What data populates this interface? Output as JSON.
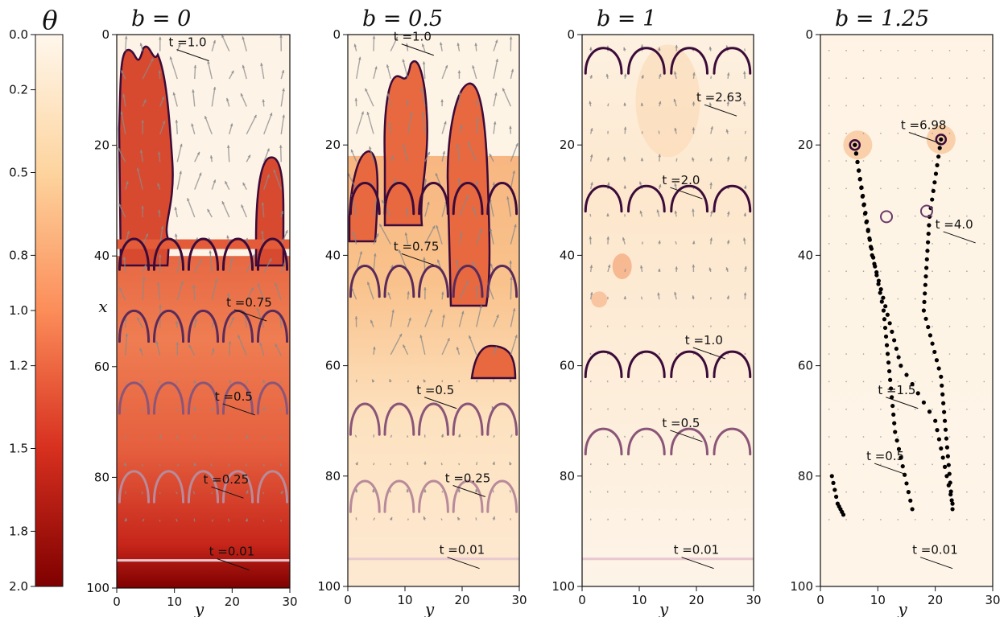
{
  "colorbar": {
    "label": "θ",
    "ticks": [
      "0.0",
      "0.2",
      "0.5",
      "0.8",
      "1.0",
      "1.2",
      "1.5",
      "1.8",
      "2.0"
    ],
    "tick_values": [
      0.0,
      0.2,
      0.5,
      0.8,
      1.0,
      1.2,
      1.5,
      1.8,
      2.0
    ],
    "range": [
      0.0,
      2.0
    ],
    "colors_light_to_dark": [
      "#fff7ec",
      "#fdd49e",
      "#fc8d59",
      "#d7301f",
      "#7f0000"
    ]
  },
  "chart_data": [
    {
      "type": "heatmap",
      "title": "b = 0",
      "xlabel": "y",
      "ylabel": "x",
      "xlim": [
        0,
        30
      ],
      "ylim": [
        100,
        0
      ],
      "x_ticks": [
        "0",
        "10",
        "20",
        "30"
      ],
      "y_ticks": [
        "0",
        "20",
        "40",
        "60",
        "80",
        "100"
      ],
      "annotations": [
        {
          "text": "t =1.0",
          "x": 9,
          "y": 3
        },
        {
          "text": "t =0.75",
          "x": 19,
          "y": 50
        },
        {
          "text": "t =0.5",
          "x": 17,
          "y": 67
        },
        {
          "text": "t =0.25",
          "x": 15,
          "y": 82
        },
        {
          "text": "t =0.01",
          "x": 16,
          "y": 95
        }
      ],
      "interface_depths": [
        {
          "t": 0.01,
          "x": 95
        },
        {
          "t": 0.25,
          "x": 82
        },
        {
          "t": 0.5,
          "x": 66
        },
        {
          "t": 0.75,
          "x": 53
        },
        {
          "t": 1.0,
          "x": 40
        }
      ]
    },
    {
      "type": "heatmap",
      "title": "b = 0.5",
      "xlabel": "y",
      "ylabel": "",
      "xlim": [
        0,
        30
      ],
      "ylim": [
        100,
        0
      ],
      "x_ticks": [
        "0",
        "10",
        "20",
        "30"
      ],
      "y_ticks": [
        "0",
        "20",
        "40",
        "60",
        "80",
        "100"
      ],
      "annotations": [
        {
          "text": "t =1.0",
          "x": 8,
          "y": 2
        },
        {
          "text": "t =0.75",
          "x": 8,
          "y": 40
        },
        {
          "text": "t =0.5",
          "x": 12,
          "y": 66
        },
        {
          "text": "t =0.25",
          "x": 17,
          "y": 82
        },
        {
          "text": "t =0.01",
          "x": 16,
          "y": 95
        }
      ],
      "interface_depths": [
        {
          "t": 0.01,
          "x": 95
        },
        {
          "t": 0.25,
          "x": 84
        },
        {
          "t": 0.5,
          "x": 70
        },
        {
          "t": 0.75,
          "x": 45
        },
        {
          "t": 1.0,
          "x": 30
        }
      ]
    },
    {
      "type": "heatmap",
      "title": "b = 1",
      "xlabel": "y",
      "ylabel": "",
      "xlim": [
        0,
        30
      ],
      "ylim": [
        100,
        0
      ],
      "x_ticks": [
        "0",
        "10",
        "20",
        "30"
      ],
      "y_ticks": [
        "0",
        "20",
        "40",
        "60",
        "80",
        "100"
      ],
      "annotations": [
        {
          "text": "t =2.63",
          "x": 20,
          "y": 13
        },
        {
          "text": "t =2.0",
          "x": 14,
          "y": 28
        },
        {
          "text": "t =1.0",
          "x": 18,
          "y": 57
        },
        {
          "text": "t =0.5",
          "x": 14,
          "y": 72
        },
        {
          "text": "t =0.01",
          "x": 16,
          "y": 95
        }
      ],
      "interface_depths": [
        {
          "t": 0.01,
          "x": 95
        },
        {
          "t": 0.5,
          "x": 74
        },
        {
          "t": 1.0,
          "x": 60
        },
        {
          "t": 2.0,
          "x": 30
        },
        {
          "t": 2.63,
          "x": 5
        }
      ]
    },
    {
      "type": "heatmap",
      "title": "b = 1.25",
      "xlabel": "y",
      "ylabel": "",
      "xlim": [
        0,
        30
      ],
      "ylim": [
        100,
        0
      ],
      "x_ticks": [
        "0",
        "10",
        "20",
        "30"
      ],
      "y_ticks": [
        "0",
        "20",
        "40",
        "60",
        "80",
        "100"
      ],
      "annotations": [
        {
          "text": "t =6.98",
          "x": 14,
          "y": 18
        },
        {
          "text": "t =4.0",
          "x": 20,
          "y": 36
        },
        {
          "text": "t =1.5",
          "x": 10,
          "y": 66
        },
        {
          "text": "t =0.5",
          "x": 8,
          "y": 78
        },
        {
          "text": "t =0.01",
          "x": 16,
          "y": 95
        }
      ],
      "trajectories": [
        {
          "points": [
            [
              2,
              80
            ],
            [
              3,
              85
            ],
            [
              4,
              87
            ]
          ]
        },
        {
          "points": [
            [
              6,
              20
            ],
            [
              8,
              34
            ],
            [
              11,
              50
            ],
            [
              13,
              72
            ],
            [
              16,
              86
            ]
          ]
        },
        {
          "points": [
            [
              21,
              19
            ],
            [
              19,
              33
            ],
            [
              18,
              50
            ],
            [
              21,
              62
            ],
            [
              23,
              86
            ]
          ]
        },
        {
          "points": [
            [
              6,
              20
            ],
            [
              9,
              40
            ],
            [
              14,
              60
            ],
            [
              20,
              70
            ],
            [
              23,
              85
            ]
          ]
        }
      ]
    }
  ]
}
